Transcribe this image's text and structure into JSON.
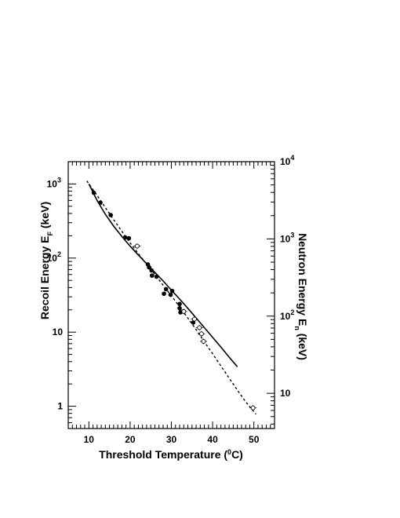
{
  "chart_data": {
    "type": "scatter",
    "xlabel": "Threshold Temperature (",
    "xlabel_sup": "0",
    "xlabel_tail": "C)",
    "ylabel_left": "Recoil Energy E",
    "ylabel_left_sub": "F",
    "ylabel_left_tail": " (keV)",
    "ylabel_right": "Neutron Energy E",
    "ylabel_right_sub": "n",
    "ylabel_right_tail": " (keV)",
    "xlim": [
      5,
      55
    ],
    "ylim_left": [
      0.5,
      2000
    ],
    "yscale_left": "log",
    "ylim_right": [
      3.5,
      10000
    ],
    "yscale_right": "log",
    "x_ticks": [
      {
        "value": 10,
        "label": "10"
      },
      {
        "value": 20,
        "label": "20"
      },
      {
        "value": 30,
        "label": "30"
      },
      {
        "value": 40,
        "label": "40"
      },
      {
        "value": 50,
        "label": "50"
      }
    ],
    "y_left_ticks": [
      {
        "value": 1,
        "base": "1",
        "exp": ""
      },
      {
        "value": 10,
        "base": "10",
        "exp": ""
      },
      {
        "value": 100,
        "base": "10",
        "exp": "2"
      },
      {
        "value": 1000,
        "base": "10",
        "exp": "3"
      }
    ],
    "y_right_ticks": [
      {
        "value": 10,
        "base": "10",
        "exp": ""
      },
      {
        "value": 100,
        "base": "10",
        "exp": "2"
      },
      {
        "value": 1000,
        "base": "10",
        "exp": "3"
      },
      {
        "value": 10000,
        "base": "10",
        "exp": "4"
      }
    ],
    "grid": false,
    "legend": "none",
    "series": [
      {
        "marker": "filled-circle",
        "points": [
          [
            11.2,
            760
          ],
          [
            12.8,
            560
          ],
          [
            15.3,
            380
          ],
          [
            18.8,
            190
          ],
          [
            19.7,
            185
          ],
          [
            24.3,
            82
          ],
          [
            24.6,
            75
          ],
          [
            25.2,
            68
          ],
          [
            25.3,
            58
          ],
          [
            26.4,
            56
          ],
          [
            28.2,
            33
          ],
          [
            28.7,
            38
          ],
          [
            29.8,
            32
          ],
          [
            30.2,
            36
          ],
          [
            32.0,
            24
          ],
          [
            32.0,
            21
          ],
          [
            32.2,
            18.5
          ],
          [
            35.3,
            13.5
          ]
        ]
      },
      {
        "marker": "open-circle",
        "points": [
          [
            21.7,
            145
          ],
          [
            33.0,
            19
          ],
          [
            35.6,
            15
          ],
          [
            36.8,
            11.5
          ],
          [
            37.3,
            9.5
          ],
          [
            37.8,
            7.5
          ],
          [
            49.8,
            0.95
          ]
        ]
      },
      {
        "line_style": "solid",
        "points": [
          [
            10.0,
            1000
          ],
          [
            12.0,
            600
          ],
          [
            14.0,
            390
          ],
          [
            16.0,
            270
          ],
          [
            18.0,
            195
          ],
          [
            20.0,
            145
          ],
          [
            22.0,
            110
          ],
          [
            24.0,
            84
          ],
          [
            26.0,
            64
          ],
          [
            28.0,
            49
          ],
          [
            30.0,
            37
          ],
          [
            32.0,
            28
          ],
          [
            34.0,
            21
          ],
          [
            36.0,
            15.5
          ],
          [
            38.0,
            11.5
          ],
          [
            40.0,
            8.5
          ],
          [
            42.0,
            6.3
          ],
          [
            44.0,
            4.6
          ],
          [
            46.0,
            3.4
          ]
        ]
      },
      {
        "line_style": "dashed",
        "points": [
          [
            9.5,
            1100
          ],
          [
            12.0,
            700
          ],
          [
            14.0,
            480
          ],
          [
            16.0,
            330
          ],
          [
            18.0,
            230
          ],
          [
            20.0,
            160
          ],
          [
            22.0,
            115
          ],
          [
            24.0,
            83
          ],
          [
            26.0,
            60
          ],
          [
            28.0,
            43
          ],
          [
            30.0,
            31
          ],
          [
            32.0,
            22
          ],
          [
            34.0,
            15.5
          ],
          [
            36.0,
            10.8
          ],
          [
            38.0,
            7.4
          ],
          [
            40.0,
            5.1
          ],
          [
            42.0,
            3.5
          ],
          [
            44.0,
            2.4
          ],
          [
            46.0,
            1.65
          ],
          [
            48.0,
            1.15
          ],
          [
            50.5,
            0.78
          ]
        ]
      }
    ]
  }
}
